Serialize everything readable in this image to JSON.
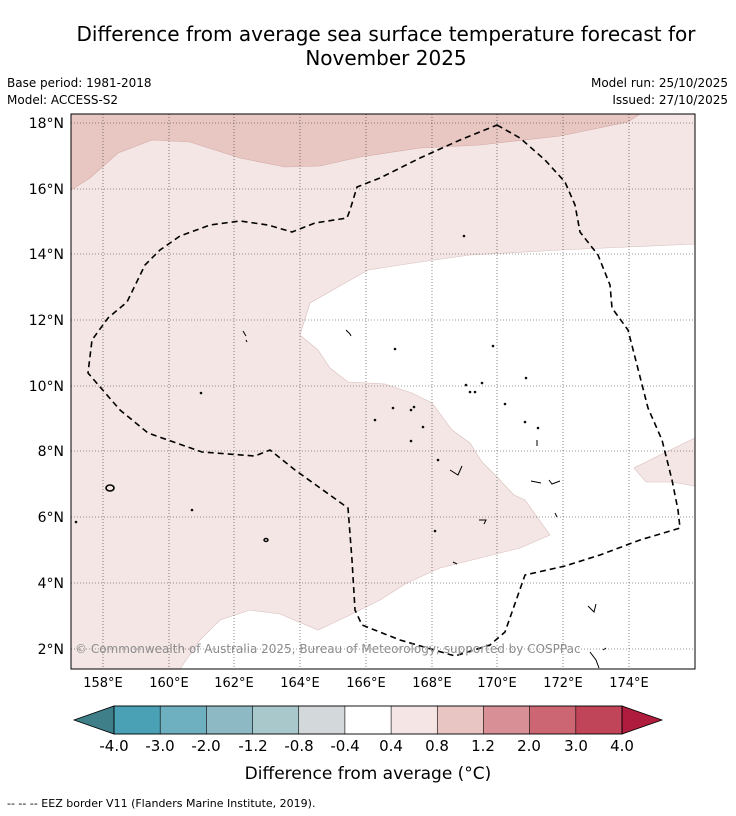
{
  "title": "Difference from average sea surface temperature forecast for November 2025",
  "title_lines": [
    "Difference from average sea surface temperature forecast for",
    "November 2025"
  ],
  "base_period": "Base period: 1981-2018",
  "model": "Model: ACCESS-S2",
  "model_run": "Model run: 25/10/2025",
  "issued": "Issued: 27/10/2025",
  "credit": "© Commonwealth of Australia 2025, Bureau of Meteorology; supported by COSPPac",
  "map": {
    "lat_labels": [
      "18°N",
      "16°N",
      "14°N",
      "12°N",
      "10°N",
      "8°N",
      "6°N",
      "4°N",
      "2°N"
    ],
    "lon_labels": [
      "158°E",
      "160°E",
      "162°E",
      "164°E",
      "166°E",
      "168°E",
      "170°E",
      "172°E",
      "174°E"
    ],
    "lat_values": [
      18,
      16,
      14,
      12,
      10,
      8,
      6,
      4,
      2
    ],
    "lon_values": [
      158,
      160,
      162,
      164,
      166,
      168,
      170,
      172,
      174
    ],
    "lon_range": [
      157,
      176
    ],
    "lat_range": [
      1.4,
      18.3
    ]
  },
  "colorbar": {
    "title": "Difference from average (°C)",
    "tick_labels": [
      "-4.0",
      "-3.0",
      "-2.0",
      "-1.2",
      "-0.8",
      "-0.4",
      "0.4",
      "0.8",
      "1.2",
      "2.0",
      "3.0",
      "4.0"
    ],
    "colors": [
      "#3f7f8a",
      "#4aa1b5",
      "#6eb0bf",
      "#8db9c4",
      "#a8c8cc",
      "#d3d8da",
      "#ffffff",
      "#f5e6e5",
      "#e8c5c2",
      "#d88f96",
      "#cc6672",
      "#c04558",
      "#b01c3e"
    ]
  },
  "legend_note": "--  --  -- EEZ border V11 (Flanders Marine Institute, 2019)."
}
